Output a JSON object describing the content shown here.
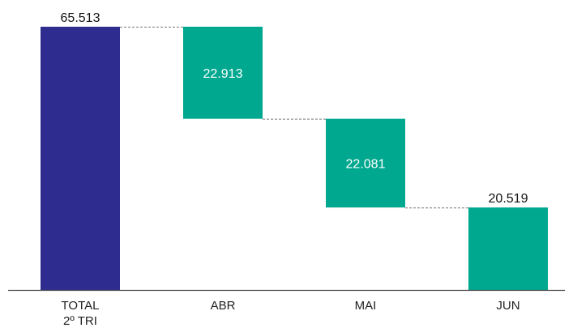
{
  "chart_data": {
    "type": "bar",
    "subtype": "waterfall",
    "title": "",
    "xlabel": "",
    "ylabel": "",
    "ylim": [
      0,
      65513
    ],
    "grid": false,
    "legend": "none",
    "categories": [
      {
        "lines": [
          "TOTAL",
          "2º TRI"
        ]
      },
      {
        "lines": [
          "ABR"
        ]
      },
      {
        "lines": [
          "MAI"
        ]
      },
      {
        "lines": [
          "JUN"
        ]
      }
    ],
    "bars": [
      {
        "kind": "total",
        "start": 0,
        "end": 65513,
        "label": "65.513",
        "label_position": "above"
      },
      {
        "kind": "step",
        "start": 42600,
        "end": 65513,
        "label": "22.913",
        "label_position": "inside"
      },
      {
        "kind": "step",
        "start": 20519,
        "end": 42600,
        "label": "22.081",
        "label_position": "inside"
      },
      {
        "kind": "step",
        "start": 0,
        "end": 20519,
        "label": "20.519",
        "label_position": "above"
      }
    ],
    "colors": {
      "total": "#2e2d8f",
      "step": "#00a88f",
      "inside_label": "#ffffff",
      "outside_label": "#111111",
      "connector": "#777777",
      "axis": "#444444"
    }
  }
}
